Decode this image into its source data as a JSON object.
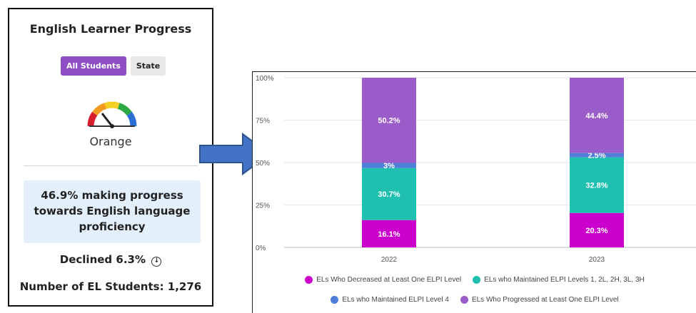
{
  "card": {
    "title": "English Learner Progress",
    "toggle": {
      "active_label": "All Students",
      "inactive_label": "State"
    },
    "gauge": {
      "label": "Orange",
      "colors": [
        "#d81e2c",
        "#f39a21",
        "#f5d024",
        "#2ea844",
        "#2b6fd6"
      ]
    },
    "progress_text": "46.9% making progress towards English language proficiency",
    "declined": {
      "text": "Declined 6.3%",
      "icon": "circle-arrow-down-icon"
    },
    "students": "Number of EL Students: 1,276"
  },
  "arrow": {
    "icon": "right-arrow-icon",
    "color": "#4472c4"
  },
  "chart_data": {
    "type": "bar",
    "stacked": true,
    "categories": [
      "2022",
      "2023"
    ],
    "y_ticks": [
      "0%",
      "25%",
      "50%",
      "75%",
      "100%"
    ],
    "ylim": [
      0,
      100
    ],
    "grid": true,
    "legend_position": "bottom",
    "series": [
      {
        "name": "ELs Who Decreased at Least One ELPI Level",
        "color": "#cc00cc",
        "values": [
          16.1,
          20.3
        ],
        "labels": [
          "16.1%",
          "20.3%"
        ]
      },
      {
        "name": "ELs who Maintained ELPI Levels 1, 2L, 2H, 3L, 3H",
        "color": "#1fc0b0",
        "values": [
          30.7,
          32.8
        ],
        "labels": [
          "30.7%",
          "32.8%"
        ]
      },
      {
        "name": "ELs who Maintained ELPI Level 4",
        "color": "#4f7ed8",
        "values": [
          3.0,
          2.5
        ],
        "labels": [
          "3%",
          "2.5%"
        ]
      },
      {
        "name": "ELs Who Progressed at Least One ELPI Level",
        "color": "#9a5cc9",
        "values": [
          50.2,
          44.4
        ],
        "labels": [
          "50.2%",
          "44.4%"
        ]
      }
    ]
  }
}
